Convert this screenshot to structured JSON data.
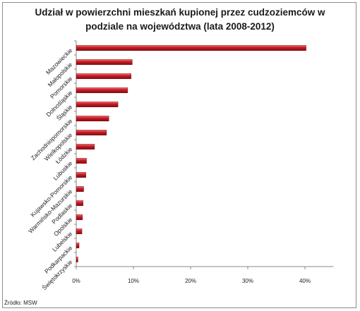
{
  "chart_data": {
    "type": "bar",
    "orientation": "horizontal",
    "title": "Udział w powierzchni mieszkań kupionej przez cudzoziemców w podziale na województwa (lata 2008-2012)",
    "title_lines": [
      "Udział w powierzchni mieszkań kupionej przez cudzoziemców w",
      "podziale na województwa (lata 2008-2012)"
    ],
    "categories": [
      "Mazowieckie",
      "Małopolskie",
      "Pomorskie",
      "Dolnośląskie",
      "Śląskie",
      "Zachodniopomorskie",
      "Wielkopolskie",
      "Łódzkie",
      "Lubuskie",
      "Kujawsko-Pomorskie",
      "Warmińsko-Mazurskie",
      "Podlaskie",
      "Opolskie",
      "Lubelskie",
      "Podkarpackie",
      "Świętokrzyskie"
    ],
    "values": [
      40.2,
      9.8,
      9.6,
      9.0,
      7.3,
      5.7,
      5.3,
      3.2,
      1.8,
      1.7,
      1.3,
      1.2,
      1.1,
      1.0,
      0.5,
      0.3
    ],
    "unit": "%",
    "xlim": [
      0,
      45
    ],
    "xticks": [
      "0%",
      "10%",
      "20%",
      "30%",
      "40%"
    ],
    "xtick_values": [
      0,
      10,
      20,
      30,
      40
    ],
    "xlabel": "",
    "ylabel": "",
    "grid": false,
    "bar_color": "#c0141a",
    "source": "Źródło: MSW"
  }
}
